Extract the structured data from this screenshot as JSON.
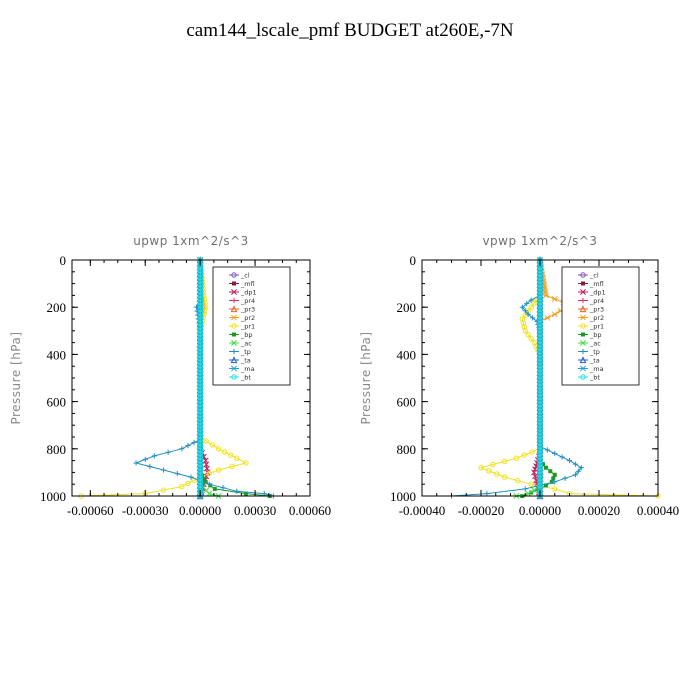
{
  "title": "cam144_lscale_pmf  BUDGET at260E,-7N",
  "colors": {
    "_cl": "#7a55b8",
    "_mfl": "#8b1a3a",
    "_dp1": "#c0205a",
    "_pr4": "#e0305a",
    "_pr3": "#f0602a",
    "_pr2": "#f0a020",
    "_pr1": "#f0e020",
    "_bp": "#1a9a20",
    "_ac": "#40e040",
    "_tp": "#2090c0",
    "_ta": "#2060d0",
    "_ma": "#20a0d0",
    "_bt": "#20e0e0",
    "axis": "#000000",
    "title_gray": "#707070"
  },
  "chart_data": [
    {
      "type": "line",
      "title": "upwp   1xm^2/s^3",
      "ylabel": "Pressure [hPa]",
      "xlabel": "",
      "xlim": [
        -0.0007,
        0.0006
      ],
      "ylim": [
        1000,
        0
      ],
      "y_inverted": true,
      "xticks": [
        -0.0006,
        -0.0003,
        0.0,
        0.0003,
        0.0006
      ],
      "xtick_labels": [
        "-0.00060",
        "-0.00030",
        "0.00000",
        "0.00030",
        "0.00060"
      ],
      "yticks": [
        0,
        200,
        400,
        600,
        800,
        1000
      ],
      "ytick_labels": [
        "0",
        "200",
        "400",
        "600",
        "800",
        "1000"
      ],
      "legend_position": "top-right",
      "series": [
        {
          "name": "_cl",
          "points": [
            [
              0,
              0
            ],
            [
              0,
              1000
            ]
          ]
        },
        {
          "name": "_mfl",
          "points": [
            [
              0,
              0
            ],
            [
              0,
              1000
            ]
          ]
        },
        {
          "name": "_dp1",
          "points": [
            [
              0,
              0
            ],
            [
              0,
              800
            ],
            [
              3e-05,
              850
            ],
            [
              4e-05,
              900
            ],
            [
              2e-05,
              950
            ],
            [
              0,
              1000
            ]
          ]
        },
        {
          "name": "_pr4",
          "points": [
            [
              0,
              0
            ],
            [
              0,
              900
            ],
            [
              2e-05,
              960
            ],
            [
              0,
              1000
            ]
          ]
        },
        {
          "name": "_pr3",
          "points": [
            [
              0,
              0
            ],
            [
              0,
              1000
            ]
          ]
        },
        {
          "name": "_pr2",
          "points": [
            [
              0,
              0
            ],
            [
              1e-05,
              150
            ],
            [
              2e-05,
              200
            ],
            [
              0,
              250
            ],
            [
              0,
              1000
            ]
          ]
        },
        {
          "name": "_pr1",
          "points": [
            [
              0,
              0
            ],
            [
              2e-05,
              150
            ],
            [
              3e-05,
              200
            ],
            [
              0,
              300
            ],
            [
              0,
              750
            ],
            [
              0.0001,
              800
            ],
            [
              0.0002,
              840
            ],
            [
              0.00025,
              860
            ],
            [
              0.0001,
              890
            ],
            [
              0,
              920
            ],
            [
              -0.0001,
              960
            ],
            [
              -0.0003,
              990
            ],
            [
              -0.00065,
              1000
            ]
          ]
        },
        {
          "name": "_bp",
          "points": [
            [
              0,
              0
            ],
            [
              0,
              900
            ],
            [
              3e-05,
              940
            ],
            [
              8e-05,
              970
            ],
            [
              0.00025,
              990
            ],
            [
              0.00038,
              1000
            ]
          ]
        },
        {
          "name": "_ac",
          "points": [
            [
              0,
              0
            ],
            [
              0,
              950
            ],
            [
              5e-05,
              990
            ],
            [
              0.0001,
              1000
            ]
          ]
        },
        {
          "name": "_tp",
          "points": [
            [
              0,
              0
            ],
            [
              0,
              180
            ],
            [
              -2e-05,
              200
            ],
            [
              -1e-05,
              250
            ],
            [
              0,
              300
            ],
            [
              0,
              760
            ],
            [
              -0.0001,
              800
            ],
            [
              -0.00025,
              830
            ],
            [
              -0.00035,
              860
            ],
            [
              -0.0002,
              890
            ],
            [
              -5e-05,
              920
            ],
            [
              5e-05,
              950
            ],
            [
              0.0002,
              980
            ],
            [
              0.00035,
              990
            ],
            [
              0.0004,
              1000
            ]
          ]
        },
        {
          "name": "_ta",
          "points": [
            [
              0,
              0
            ],
            [
              0,
              1000
            ]
          ]
        },
        {
          "name": "_ma",
          "points": [
            [
              0,
              0
            ],
            [
              0,
              1000
            ]
          ]
        },
        {
          "name": "_bt",
          "points": [
            [
              0,
              0
            ],
            [
              0,
              1000
            ]
          ]
        }
      ]
    },
    {
      "type": "line",
      "title": "vpwp   1xm^2/s^3",
      "ylabel": "Pressure [hPa]",
      "xlabel": "",
      "xlim": [
        -0.0004,
        0.0004
      ],
      "ylim": [
        1000,
        0
      ],
      "y_inverted": true,
      "xticks": [
        -0.0004,
        -0.0002,
        0.0,
        0.0002,
        0.0004
      ],
      "xtick_labels": [
        "-0.00040",
        "-0.00020",
        "0.00000",
        "0.00020",
        "0.00040"
      ],
      "yticks": [
        0,
        200,
        400,
        600,
        800,
        1000
      ],
      "ytick_labels": [
        "0",
        "200",
        "400",
        "600",
        "800",
        "1000"
      ],
      "legend_position": "top-right",
      "series": [
        {
          "name": "_cl",
          "points": [
            [
              0,
              0
            ],
            [
              0,
              1000
            ]
          ]
        },
        {
          "name": "_mfl",
          "points": [
            [
              0,
              0
            ],
            [
              0,
              1000
            ]
          ]
        },
        {
          "name": "_dp1",
          "points": [
            [
              0,
              0
            ],
            [
              0,
              820
            ],
            [
              -1e-05,
              860
            ],
            [
              -2e-05,
              900
            ],
            [
              -1e-05,
              950
            ],
            [
              0,
              1000
            ]
          ]
        },
        {
          "name": "_pr4",
          "points": [
            [
              0,
              0
            ],
            [
              0,
              900
            ],
            [
              -1e-05,
              950
            ],
            [
              0,
              1000
            ]
          ]
        },
        {
          "name": "_pr3",
          "points": [
            [
              0,
              0
            ],
            [
              0,
              1000
            ]
          ]
        },
        {
          "name": "_pr2",
          "points": [
            [
              0,
              0
            ],
            [
              2e-05,
              150
            ],
            [
              8e-05,
              180
            ],
            [
              9e-05,
              200
            ],
            [
              5e-05,
              230
            ],
            [
              0,
              260
            ],
            [
              0,
              1000
            ]
          ]
        },
        {
          "name": "_pr1",
          "points": [
            [
              0,
              0
            ],
            [
              0,
              150
            ],
            [
              -3e-05,
              200
            ],
            [
              -6e-05,
              250
            ],
            [
              -5e-05,
              300
            ],
            [
              -2e-05,
              350
            ],
            [
              0,
              400
            ],
            [
              0,
              800
            ],
            [
              -8e-05,
              840
            ],
            [
              -0.0002,
              880
            ],
            [
              -0.00012,
              920
            ],
            [
              -3e-05,
              950
            ],
            [
              5e-05,
              970
            ],
            [
              0.0001,
              990
            ],
            [
              0.0004,
              1000
            ]
          ]
        },
        {
          "name": "_bp",
          "points": [
            [
              0,
              0
            ],
            [
              0,
              850
            ],
            [
              2e-05,
              880
            ],
            [
              5e-05,
              910
            ],
            [
              4e-05,
              940
            ],
            [
              0,
              970
            ],
            [
              -6e-05,
              1000
            ]
          ]
        },
        {
          "name": "_ac",
          "points": [
            [
              0,
              0
            ],
            [
              0,
              960
            ],
            [
              -4e-05,
              990
            ],
            [
              -8e-05,
              1000
            ]
          ]
        },
        {
          "name": "_tp",
          "points": [
            [
              0,
              0
            ],
            [
              0,
              150
            ],
            [
              -3e-05,
              170
            ],
            [
              -6e-05,
              200
            ],
            [
              -4e-05,
              230
            ],
            [
              -1e-05,
              260
            ],
            [
              0,
              300
            ],
            [
              0,
              790
            ],
            [
              5e-05,
              820
            ],
            [
              0.0001,
              850
            ],
            [
              0.00014,
              880
            ],
            [
              0.00012,
              910
            ],
            [
              5e-05,
              940
            ],
            [
              -5e-05,
              970
            ],
            [
              -0.00018,
              990
            ],
            [
              -0.0003,
              1000
            ]
          ]
        },
        {
          "name": "_ta",
          "points": [
            [
              0,
              0
            ],
            [
              0,
              1000
            ]
          ]
        },
        {
          "name": "_ma",
          "points": [
            [
              0,
              0
            ],
            [
              0,
              1000
            ]
          ]
        },
        {
          "name": "_bt",
          "points": [
            [
              0,
              0
            ],
            [
              0,
              1000
            ]
          ]
        }
      ]
    }
  ]
}
